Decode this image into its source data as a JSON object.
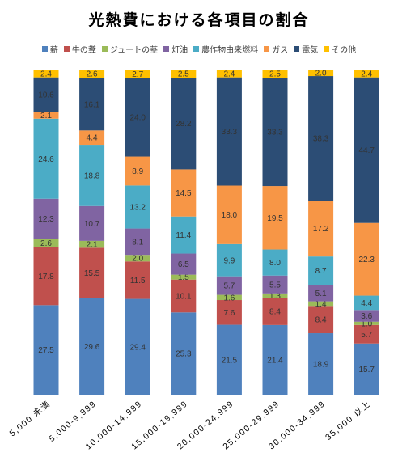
{
  "chart_data": {
    "type": "bar",
    "stacked": true,
    "title": "光熱費における各項目の割合",
    "categories": [
      "5,000 未満",
      "5,000-9,999",
      "10,000-14,999",
      "15,000-19,999",
      "20,000-24,999",
      "25,000-29,999",
      "30,000-34,999",
      "35,000 以上"
    ],
    "series": [
      {
        "name": "薪",
        "color": "#4f81bd",
        "values": [
          27.5,
          29.6,
          29.4,
          25.3,
          21.5,
          21.4,
          18.9,
          15.7
        ]
      },
      {
        "name": "牛の糞",
        "color": "#c0504d",
        "values": [
          17.8,
          15.5,
          11.5,
          10.1,
          7.6,
          8.4,
          8.4,
          5.7
        ]
      },
      {
        "name": "ジュートの茎",
        "color": "#9bbb59",
        "values": [
          2.6,
          2.1,
          2.0,
          1.5,
          1.6,
          1.3,
          1.4,
          1.0
        ]
      },
      {
        "name": "灯油",
        "color": "#8064a2",
        "values": [
          12.3,
          10.7,
          8.1,
          6.5,
          5.7,
          5.5,
          5.1,
          3.6
        ]
      },
      {
        "name": "農作物由来燃料",
        "color": "#4bacc6",
        "values": [
          24.6,
          18.8,
          13.2,
          11.4,
          9.9,
          8.0,
          8.7,
          4.4
        ]
      },
      {
        "name": "ガス",
        "color": "#f79646",
        "values": [
          2.1,
          4.4,
          8.9,
          14.5,
          18.0,
          19.5,
          17.2,
          22.3
        ]
      },
      {
        "name": "電気",
        "color": "#2c4d75",
        "values": [
          10.6,
          16.1,
          24.0,
          28.2,
          33.3,
          33.3,
          38.3,
          44.7
        ]
      },
      {
        "name": "その他",
        "color": "#ffc000",
        "values": [
          2.4,
          2.6,
          2.7,
          2.5,
          2.4,
          2.5,
          2.0,
          2.4
        ]
      }
    ],
    "legend_position": "top",
    "grid": false
  }
}
